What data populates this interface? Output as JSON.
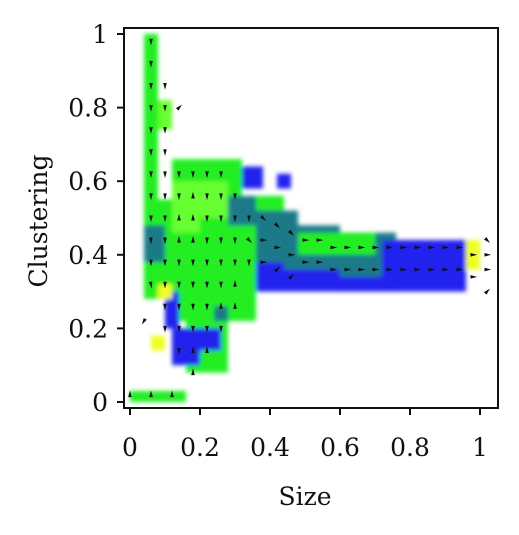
{
  "chart_data": {
    "type": "heatmap",
    "subtype": "quiver-on-heatmap",
    "title": "",
    "xlabel": "Size",
    "ylabel": "Clustering",
    "xlim": [
      -0.02,
      1.05
    ],
    "ylim": [
      -0.02,
      1.02
    ],
    "xticks": [
      "0",
      "0.2",
      "0.4",
      "0.6",
      "0.8",
      "1"
    ],
    "yticks": [
      "0",
      "0.2",
      "0.4",
      "0.6",
      "0.8",
      "1"
    ],
    "xtick_values": [
      0,
      0.2,
      0.4,
      0.6,
      0.8,
      1
    ],
    "ytick_values": [
      0,
      0.2,
      0.4,
      0.6,
      0.8,
      1
    ],
    "grid": false,
    "legend": "none",
    "colors": {
      "green": "#22ee22",
      "lime": "#66ff33",
      "yellow": "#eeff22",
      "teal": "#1a7a88",
      "blue": "#2222ee",
      "arrow": "#111111"
    },
    "cell_size": [
      0.04,
      0.04
    ],
    "regions": [
      {
        "color": "green",
        "x": [
          0.04,
          0.08
        ],
        "y": [
          0.55,
          1.0
        ]
      },
      {
        "color": "green",
        "x": [
          0.04,
          0.12
        ],
        "y": [
          0.28,
          0.55
        ]
      },
      {
        "color": "green",
        "x": [
          0.12,
          0.32
        ],
        "y": [
          0.38,
          0.66
        ]
      },
      {
        "color": "green",
        "x": [
          0.12,
          0.28
        ],
        "y": [
          0.22,
          0.38
        ]
      },
      {
        "color": "green",
        "x": [
          0.16,
          0.28
        ],
        "y": [
          0.08,
          0.22
        ]
      },
      {
        "color": "green",
        "x": [
          0.28,
          0.44
        ],
        "y": [
          0.34,
          0.56
        ]
      },
      {
        "color": "green",
        "x": [
          0.0,
          0.16
        ],
        "y": [
          0.0,
          0.03
        ]
      },
      {
        "color": "green",
        "x": [
          0.24,
          0.36
        ],
        "y": [
          0.22,
          0.34
        ]
      },
      {
        "color": "lime",
        "x": [
          0.08,
          0.12
        ],
        "y": [
          0.74,
          0.82
        ]
      },
      {
        "color": "lime",
        "x": [
          0.12,
          0.2
        ],
        "y": [
          0.46,
          0.6
        ]
      },
      {
        "color": "lime",
        "x": [
          0.2,
          0.28
        ],
        "y": [
          0.5,
          0.6
        ]
      },
      {
        "color": "teal",
        "x": [
          0.04,
          0.1
        ],
        "y": [
          0.38,
          0.48
        ]
      },
      {
        "color": "teal",
        "x": [
          0.28,
          0.36
        ],
        "y": [
          0.48,
          0.56
        ]
      },
      {
        "color": "teal",
        "x": [
          0.36,
          0.48
        ],
        "y": [
          0.38,
          0.52
        ]
      },
      {
        "color": "teal",
        "x": [
          0.44,
          0.6
        ],
        "y": [
          0.32,
          0.48
        ]
      },
      {
        "color": "teal",
        "x": [
          0.6,
          0.76
        ],
        "y": [
          0.3,
          0.46
        ]
      },
      {
        "color": "teal",
        "x": [
          0.88,
          0.98
        ],
        "y": [
          0.36,
          0.44
        ]
      },
      {
        "color": "green",
        "x": [
          0.6,
          0.7
        ],
        "y": [
          0.4,
          0.46
        ]
      },
      {
        "color": "green",
        "x": [
          0.48,
          0.6
        ],
        "y": [
          0.4,
          0.46
        ]
      },
      {
        "color": "blue",
        "x": [
          0.32,
          0.38
        ],
        "y": [
          0.58,
          0.64
        ]
      },
      {
        "color": "blue",
        "x": [
          0.42,
          0.46
        ],
        "y": [
          0.58,
          0.62
        ]
      },
      {
        "color": "blue",
        "x": [
          0.44,
          0.6
        ],
        "y": [
          0.3,
          0.36
        ]
      },
      {
        "color": "blue",
        "x": [
          0.6,
          0.72
        ],
        "y": [
          0.3,
          0.34
        ]
      },
      {
        "color": "blue",
        "x": [
          0.72,
          0.96
        ],
        "y": [
          0.3,
          0.44
        ]
      },
      {
        "color": "blue",
        "x": [
          0.76,
          0.86
        ],
        "y": [
          0.4,
          0.44
        ]
      },
      {
        "color": "blue",
        "x": [
          0.36,
          0.44
        ],
        "y": [
          0.3,
          0.38
        ]
      },
      {
        "color": "blue",
        "x": [
          0.1,
          0.14
        ],
        "y": [
          0.2,
          0.3
        ]
      },
      {
        "color": "blue",
        "x": [
          0.12,
          0.2
        ],
        "y": [
          0.1,
          0.2
        ]
      },
      {
        "color": "blue",
        "x": [
          0.2,
          0.26
        ],
        "y": [
          0.14,
          0.2
        ]
      },
      {
        "color": "yellow",
        "x": [
          0.96,
          1.0
        ],
        "y": [
          0.36,
          0.44
        ]
      },
      {
        "color": "yellow",
        "x": [
          0.08,
          0.12
        ],
        "y": [
          0.28,
          0.32
        ]
      },
      {
        "color": "yellow",
        "x": [
          0.06,
          0.1
        ],
        "y": [
          0.14,
          0.18
        ]
      },
      {
        "color": "teal",
        "x": [
          0.24,
          0.28
        ],
        "y": [
          0.22,
          0.26
        ]
      }
    ],
    "arrows": [
      {
        "x": 0.06,
        "y": 0.98,
        "u": 0.0,
        "v": -1.0
      },
      {
        "x": 0.06,
        "y": 0.92,
        "u": 0.0,
        "v": -1.0
      },
      {
        "x": 0.06,
        "y": 0.86,
        "u": 0.0,
        "v": -1.0
      },
      {
        "x": 0.06,
        "y": 0.8,
        "u": 0.0,
        "v": -1.0
      },
      {
        "x": 0.06,
        "y": 0.74,
        "u": 0.0,
        "v": -1.0
      },
      {
        "x": 0.06,
        "y": 0.68,
        "u": 0.0,
        "v": -1.0
      },
      {
        "x": 0.06,
        "y": 0.62,
        "u": 0.0,
        "v": -1.0
      },
      {
        "x": 0.06,
        "y": 0.56,
        "u": 0.0,
        "v": -1.0
      },
      {
        "x": 0.06,
        "y": 0.5,
        "u": 0.0,
        "v": -1.0
      },
      {
        "x": 0.06,
        "y": 0.44,
        "u": 0.0,
        "v": -1.0
      },
      {
        "x": 0.06,
        "y": 0.38,
        "u": 0.0,
        "v": -1.0
      },
      {
        "x": 0.06,
        "y": 0.32,
        "u": 0.2,
        "v": -1.0
      },
      {
        "x": 0.1,
        "y": 0.86,
        "u": 0.0,
        "v": -1.0
      },
      {
        "x": 0.1,
        "y": 0.8,
        "u": 0.0,
        "v": -1.0
      },
      {
        "x": 0.1,
        "y": 0.74,
        "u": 0.0,
        "v": -1.0
      },
      {
        "x": 0.1,
        "y": 0.68,
        "u": 0.0,
        "v": -1.0
      },
      {
        "x": 0.1,
        "y": 0.62,
        "u": 0.0,
        "v": -1.0
      },
      {
        "x": 0.1,
        "y": 0.56,
        "u": 0.0,
        "v": -1.0
      },
      {
        "x": 0.1,
        "y": 0.5,
        "u": 0.0,
        "v": -1.0
      },
      {
        "x": 0.1,
        "y": 0.44,
        "u": 0.0,
        "v": -1.0
      },
      {
        "x": 0.1,
        "y": 0.38,
        "u": 0.0,
        "v": -1.0
      },
      {
        "x": 0.1,
        "y": 0.32,
        "u": 0.0,
        "v": -1.0
      },
      {
        "x": 0.1,
        "y": 0.26,
        "u": 0.0,
        "v": -1.0
      },
      {
        "x": 0.1,
        "y": 0.2,
        "u": 0.0,
        "v": -1.0
      },
      {
        "x": 0.14,
        "y": 0.8,
        "u": 1.0,
        "v": 1.0
      },
      {
        "x": 0.14,
        "y": 0.62,
        "u": 0.0,
        "v": -1.0
      },
      {
        "x": 0.14,
        "y": 0.56,
        "u": 0.0,
        "v": -1.0
      },
      {
        "x": 0.14,
        "y": 0.5,
        "u": 0.0,
        "v": 1.0
      },
      {
        "x": 0.14,
        "y": 0.44,
        "u": 0.0,
        "v": 1.0
      },
      {
        "x": 0.14,
        "y": 0.38,
        "u": 0.0,
        "v": -1.0
      },
      {
        "x": 0.14,
        "y": 0.32,
        "u": 0.0,
        "v": -1.0
      },
      {
        "x": 0.14,
        "y": 0.26,
        "u": 0.0,
        "v": -1.0
      },
      {
        "x": 0.14,
        "y": 0.2,
        "u": 0.0,
        "v": -1.0
      },
      {
        "x": 0.14,
        "y": 0.14,
        "u": 0.0,
        "v": -1.0
      },
      {
        "x": 0.18,
        "y": 0.62,
        "u": 0.0,
        "v": -1.0
      },
      {
        "x": 0.18,
        "y": 0.56,
        "u": 0.0,
        "v": 1.0
      },
      {
        "x": 0.18,
        "y": 0.5,
        "u": 0.0,
        "v": 1.0
      },
      {
        "x": 0.18,
        "y": 0.44,
        "u": 0.0,
        "v": 1.0
      },
      {
        "x": 0.18,
        "y": 0.38,
        "u": 0.0,
        "v": -1.0
      },
      {
        "x": 0.18,
        "y": 0.32,
        "u": 0.0,
        "v": -1.0
      },
      {
        "x": 0.18,
        "y": 0.26,
        "u": 0.0,
        "v": -1.0
      },
      {
        "x": 0.18,
        "y": 0.2,
        "u": 0.0,
        "v": -1.0
      },
      {
        "x": 0.18,
        "y": 0.14,
        "u": 0.0,
        "v": 1.0
      },
      {
        "x": 0.18,
        "y": 0.08,
        "u": 0.0,
        "v": 1.0
      },
      {
        "x": 0.22,
        "y": 0.62,
        "u": 0.0,
        "v": -1.0
      },
      {
        "x": 0.22,
        "y": 0.56,
        "u": 0.0,
        "v": -1.0
      },
      {
        "x": 0.22,
        "y": 0.5,
        "u": 0.0,
        "v": -1.0
      },
      {
        "x": 0.22,
        "y": 0.44,
        "u": 0.0,
        "v": -1.0
      },
      {
        "x": 0.22,
        "y": 0.38,
        "u": 0.0,
        "v": -1.0
      },
      {
        "x": 0.22,
        "y": 0.32,
        "u": 0.0,
        "v": -1.0
      },
      {
        "x": 0.22,
        "y": 0.26,
        "u": 0.0,
        "v": -1.0
      },
      {
        "x": 0.22,
        "y": 0.2,
        "u": 0.0,
        "v": -1.0
      },
      {
        "x": 0.22,
        "y": 0.14,
        "u": 0.0,
        "v": 1.0
      },
      {
        "x": 0.26,
        "y": 0.62,
        "u": 0.0,
        "v": -1.0
      },
      {
        "x": 0.26,
        "y": 0.56,
        "u": 0.0,
        "v": -1.0
      },
      {
        "x": 0.26,
        "y": 0.5,
        "u": 0.0,
        "v": -1.0
      },
      {
        "x": 0.26,
        "y": 0.44,
        "u": 0.0,
        "v": -1.0
      },
      {
        "x": 0.26,
        "y": 0.38,
        "u": 0.0,
        "v": -1.0
      },
      {
        "x": 0.26,
        "y": 0.32,
        "u": 0.0,
        "v": -1.0
      },
      {
        "x": 0.26,
        "y": 0.26,
        "u": 0.0,
        "v": 1.0
      },
      {
        "x": 0.26,
        "y": 0.2,
        "u": 0.0,
        "v": -1.0
      },
      {
        "x": 0.3,
        "y": 0.56,
        "u": 0.0,
        "v": -1.0
      },
      {
        "x": 0.3,
        "y": 0.5,
        "u": 0.0,
        "v": -1.0
      },
      {
        "x": 0.3,
        "y": 0.44,
        "u": 0.0,
        "v": -1.0
      },
      {
        "x": 0.3,
        "y": 0.38,
        "u": 0.0,
        "v": -1.0
      },
      {
        "x": 0.3,
        "y": 0.32,
        "u": 0.0,
        "v": 1.0
      },
      {
        "x": 0.3,
        "y": 0.26,
        "u": 0.0,
        "v": 1.0
      },
      {
        "x": 0.34,
        "y": 0.5,
        "u": 0.0,
        "v": -1.0
      },
      {
        "x": 0.34,
        "y": 0.44,
        "u": 1.0,
        "v": -1.0
      },
      {
        "x": 0.34,
        "y": 0.38,
        "u": 0.0,
        "v": -1.0
      },
      {
        "x": 0.38,
        "y": 0.5,
        "u": 1.0,
        "v": -1.0
      },
      {
        "x": 0.38,
        "y": 0.44,
        "u": 1.0,
        "v": 0.0
      },
      {
        "x": 0.38,
        "y": 0.38,
        "u": 1.0,
        "v": 0.0
      },
      {
        "x": 0.42,
        "y": 0.48,
        "u": 1.0,
        "v": -1.0
      },
      {
        "x": 0.42,
        "y": 0.42,
        "u": 1.0,
        "v": 0.0
      },
      {
        "x": 0.42,
        "y": 0.36,
        "u": 1.0,
        "v": 1.0
      },
      {
        "x": 0.46,
        "y": 0.46,
        "u": 1.0,
        "v": -1.0
      },
      {
        "x": 0.46,
        "y": 0.4,
        "u": 1.0,
        "v": 0.0
      },
      {
        "x": 0.46,
        "y": 0.34,
        "u": 1.0,
        "v": 1.0
      },
      {
        "x": 0.5,
        "y": 0.44,
        "u": 1.0,
        "v": 0.0
      },
      {
        "x": 0.5,
        "y": 0.38,
        "u": 1.0,
        "v": 0.0
      },
      {
        "x": 0.54,
        "y": 0.44,
        "u": 1.0,
        "v": 0.0
      },
      {
        "x": 0.54,
        "y": 0.38,
        "u": 1.0,
        "v": 0.0
      },
      {
        "x": 0.58,
        "y": 0.42,
        "u": 1.0,
        "v": 0.0
      },
      {
        "x": 0.58,
        "y": 0.36,
        "u": 1.0,
        "v": 0.0
      },
      {
        "x": 0.62,
        "y": 0.42,
        "u": 1.0,
        "v": 0.0
      },
      {
        "x": 0.62,
        "y": 0.36,
        "u": 1.0,
        "v": 0.0
      },
      {
        "x": 0.66,
        "y": 0.42,
        "u": 1.0,
        "v": 0.0
      },
      {
        "x": 0.66,
        "y": 0.36,
        "u": 1.0,
        "v": 0.0
      },
      {
        "x": 0.7,
        "y": 0.42,
        "u": 1.0,
        "v": 0.0
      },
      {
        "x": 0.7,
        "y": 0.36,
        "u": 1.0,
        "v": 0.0
      },
      {
        "x": 0.74,
        "y": 0.42,
        "u": 1.0,
        "v": 0.0
      },
      {
        "x": 0.74,
        "y": 0.36,
        "u": 1.0,
        "v": 0.0
      },
      {
        "x": 0.78,
        "y": 0.42,
        "u": 1.0,
        "v": 0.0
      },
      {
        "x": 0.78,
        "y": 0.36,
        "u": 1.0,
        "v": 0.0
      },
      {
        "x": 0.82,
        "y": 0.42,
        "u": 1.0,
        "v": 0.0
      },
      {
        "x": 0.82,
        "y": 0.36,
        "u": 1.0,
        "v": 0.0
      },
      {
        "x": 0.86,
        "y": 0.42,
        "u": 1.0,
        "v": 0.0
      },
      {
        "x": 0.86,
        "y": 0.36,
        "u": 1.0,
        "v": 0.0
      },
      {
        "x": 0.9,
        "y": 0.42,
        "u": 1.0,
        "v": 0.0
      },
      {
        "x": 0.9,
        "y": 0.36,
        "u": 1.0,
        "v": 0.0
      },
      {
        "x": 0.94,
        "y": 0.42,
        "u": 1.0,
        "v": 0.0
      },
      {
        "x": 0.94,
        "y": 0.36,
        "u": 1.0,
        "v": 0.0
      },
      {
        "x": 0.98,
        "y": 0.4,
        "u": 1.0,
        "v": 0.0
      },
      {
        "x": 0.98,
        "y": 0.34,
        "u": 1.0,
        "v": 0.0
      },
      {
        "x": 1.02,
        "y": 0.4,
        "u": 1.0,
        "v": 0.0
      },
      {
        "x": 1.02,
        "y": 0.36,
        "u": 1.0,
        "v": 0.0
      },
      {
        "x": 1.02,
        "y": 0.3,
        "u": 1.0,
        "v": 1.0
      },
      {
        "x": 1.02,
        "y": 0.44,
        "u": 1.0,
        "v": -1.0
      },
      {
        "x": 0.0,
        "y": 0.02,
        "u": 0.0,
        "v": 1.0
      },
      {
        "x": 0.06,
        "y": 0.02,
        "u": 0.0,
        "v": 1.0
      },
      {
        "x": 0.12,
        "y": 0.02,
        "u": 0.0,
        "v": 1.0
      },
      {
        "x": 0.04,
        "y": 0.22,
        "u": -0.6,
        "v": -1.0
      }
    ]
  }
}
